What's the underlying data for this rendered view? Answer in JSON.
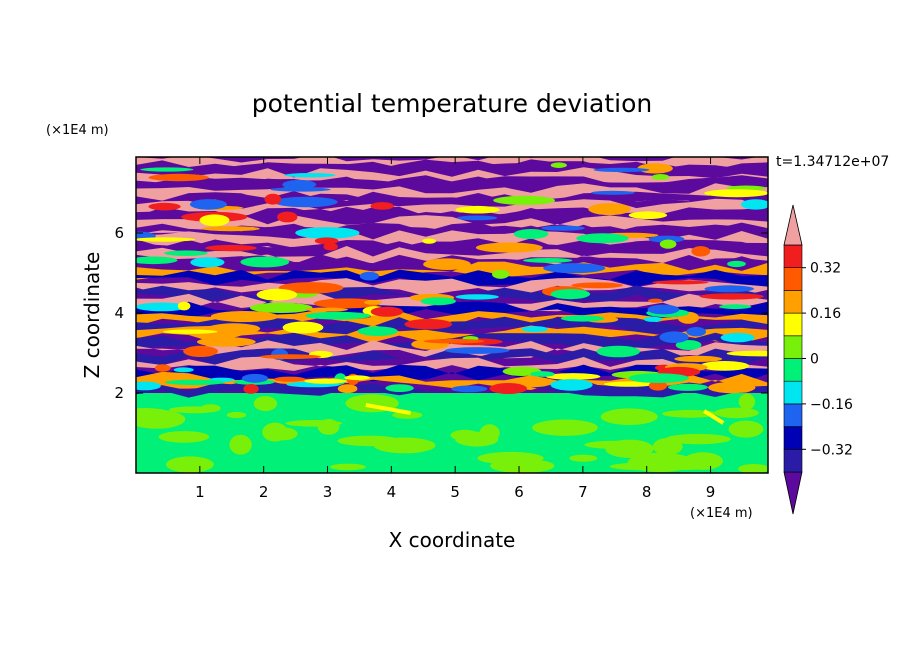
{
  "chart_data": {
    "type": "heatmap",
    "title": "potential temperature deviation",
    "xlabel": "X coordinate",
    "ylabel": "Z coordinate",
    "x_unit": "(×1E4 m)",
    "y_unit": "(×1E4 m)",
    "time_label": "t=1.34712e+07",
    "xlim": [
      0,
      9.9
    ],
    "ylim": [
      0,
      7.9
    ],
    "x_ticks": [
      "1",
      "2",
      "3",
      "4",
      "5",
      "6",
      "7",
      "8",
      "9"
    ],
    "y_ticks": [
      "2",
      "4",
      "6"
    ],
    "colorbar": {
      "labels": [
        "0.32",
        "0.16",
        "0",
        "−0.16",
        "−0.32"
      ],
      "label_values": [
        0.32,
        0.16,
        0,
        -0.16,
        -0.32
      ],
      "levels": [
        -0.4,
        -0.32,
        -0.24,
        -0.16,
        -0.08,
        0,
        0.08,
        0.16,
        0.24,
        0.32,
        0.4
      ],
      "colors": [
        "#5c0a9e",
        "#2b1ca8",
        "#0000b4",
        "#1e64f0",
        "#00e6f0",
        "#00f078",
        "#78f00a",
        "#ffff00",
        "#ffa000",
        "#ff5a00",
        "#f01e1e",
        "#f0a0a0"
      ]
    }
  }
}
